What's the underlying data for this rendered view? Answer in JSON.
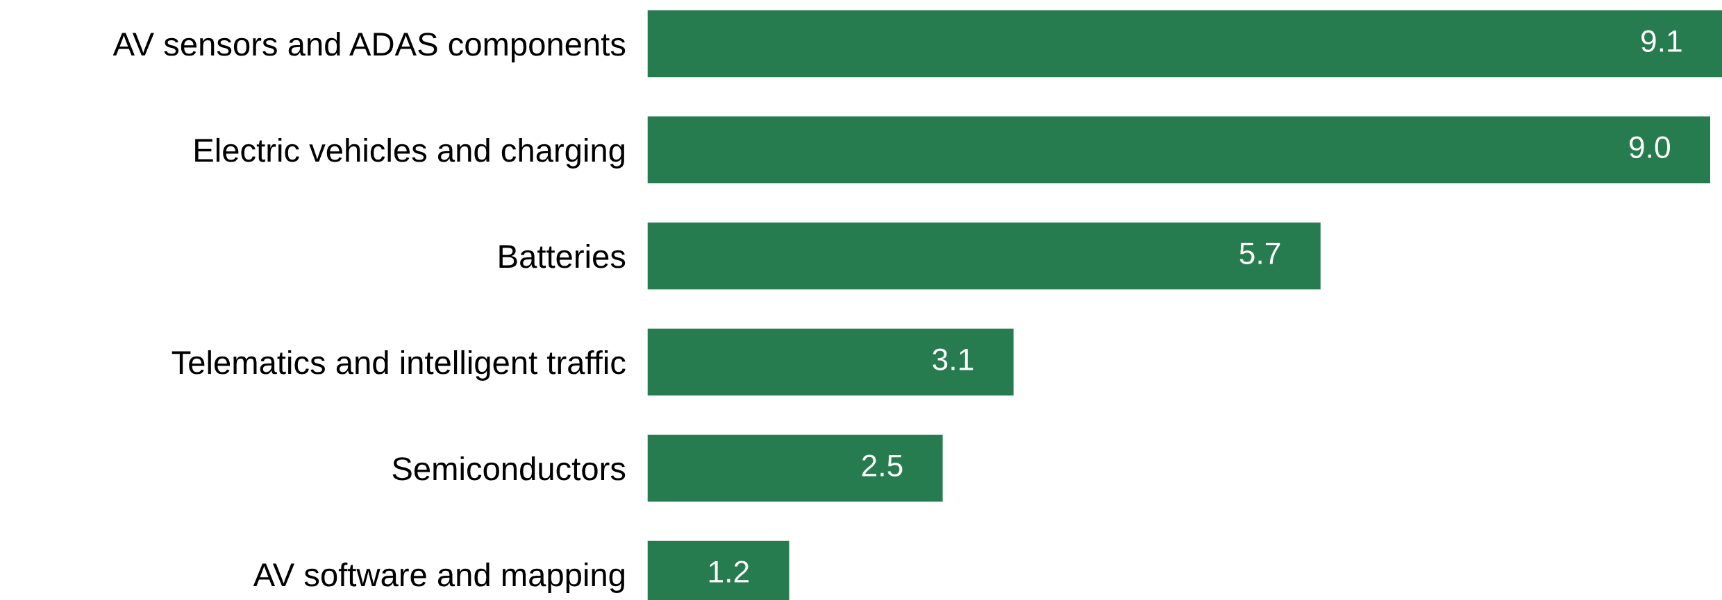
{
  "chart_data": {
    "type": "bar",
    "orientation": "horizontal",
    "grid": false,
    "categories": [
      "AV sensors and ADAS components",
      "Electric vehicles and charging",
      "Batteries",
      "Telematics and intelligent traffic",
      "Semiconductors",
      "AV software and mapping"
    ],
    "series": [
      {
        "color": "#267c4e",
        "values": [
          9.1,
          9.0,
          5.7,
          3.1,
          2.5,
          1.2
        ],
        "value_labels": [
          "9.1",
          "9.0",
          "5.7",
          "3.1",
          "2.5",
          "1.2"
        ]
      }
    ]
  }
}
